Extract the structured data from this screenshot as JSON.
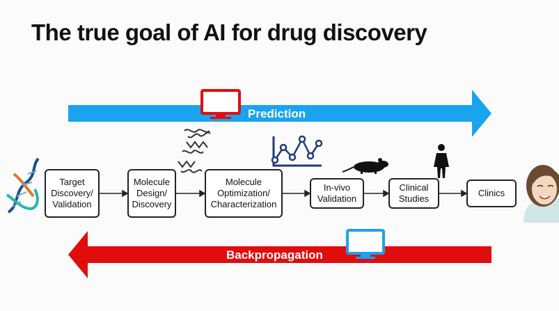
{
  "title": "The true goal of AI for drug discovery",
  "forward_arrow": {
    "label": "Prediction",
    "color": "#1aa3ef"
  },
  "backward_arrow": {
    "label": "Backpropagation",
    "color": "#e10d0d"
  },
  "pipeline": [
    {
      "label": "Target\nDiscovery/\nValidation"
    },
    {
      "label": "Molecule\nDesign/\nDiscovery"
    },
    {
      "label": "Molecule\nOptimization/\nCharacterization"
    },
    {
      "label": "In-vivo\nValidation"
    },
    {
      "label": "Clinical\nStudies"
    },
    {
      "label": "Clinics"
    }
  ],
  "icons": [
    "dna-icon",
    "red-monitor-icon",
    "blue-monitor-icon",
    "protein-helix-icon",
    "line-graph-icon",
    "mouse-icon",
    "person-icon",
    "patient-face-icon"
  ]
}
